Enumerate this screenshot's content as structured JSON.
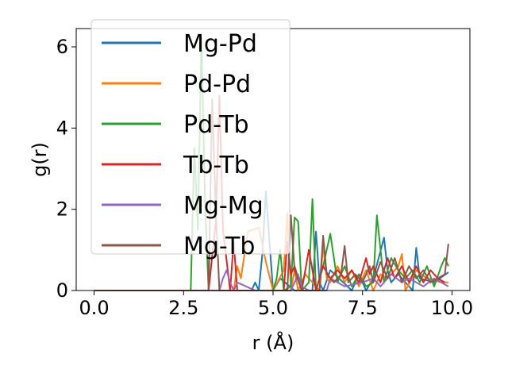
{
  "chart_data": {
    "type": "line",
    "xlabel": "r (Å)",
    "ylabel": "g(r)",
    "xlim": [
      -0.5,
      10.5
    ],
    "ylim": [
      0,
      6.45
    ],
    "xticks": [
      "0.0",
      "2.5",
      "5.0",
      "7.5",
      "10.0"
    ],
    "yticks": [
      "0",
      "2",
      "4",
      "6"
    ],
    "legend_position": "upper-left",
    "grid": false,
    "series": [
      {
        "name": "Mg-Pd",
        "color": "#1f77b4",
        "x": [
          0,
          0.5,
          1,
          1.5,
          2,
          2.5,
          2.7,
          2.8,
          2.9,
          3.0,
          3.5,
          4.0,
          4.4,
          4.5,
          4.6,
          4.7,
          4.8,
          4.9,
          5.0,
          5.2,
          5.6,
          6.1,
          6.2,
          6.3,
          6.4,
          6.6,
          7.2,
          7.4,
          7.6,
          7.8,
          8.1,
          8.2,
          8.3,
          8.5,
          8.9,
          9.0,
          9.1,
          9.5,
          9.9
        ],
        "y": [
          0,
          0,
          0,
          0,
          0,
          0,
          0,
          0,
          0,
          0,
          0,
          0,
          0,
          0.2,
          0,
          0.9,
          2.45,
          1.2,
          0,
          0.3,
          0,
          0,
          1.45,
          0.2,
          0,
          0.5,
          0,
          0.4,
          0,
          0.3,
          1.3,
          0.5,
          0.2,
          0.4,
          0,
          1.05,
          0.3,
          0.2,
          0.45
        ]
      },
      {
        "name": "Pd-Pd",
        "color": "#ff7f0e",
        "x": [
          0,
          0.5,
          1,
          1.5,
          2,
          2.5,
          3.5,
          3.9,
          4.0,
          4.1,
          4.3,
          4.6,
          4.8,
          5.0,
          5.3,
          5.4,
          5.5,
          5.6,
          5.7,
          5.9,
          6.3,
          6.4,
          6.5,
          6.6,
          6.8,
          7.0,
          7.2,
          7.4,
          7.6,
          7.8,
          8.0,
          8.2,
          8.5,
          8.6,
          8.7,
          9.0,
          9.3,
          9.7,
          9.9
        ],
        "y": [
          0,
          0,
          0,
          0,
          0,
          0,
          0,
          0,
          0.6,
          0.3,
          1.45,
          1.55,
          0.7,
          0,
          0.5,
          1.9,
          0,
          0.5,
          0,
          0.4,
          0,
          1.1,
          0.3,
          0.2,
          0.6,
          0.2,
          0.5,
          0.1,
          0.5,
          0,
          0.4,
          0.3,
          0.6,
          0.9,
          0,
          0.5,
          0.3,
          0.2,
          0.2
        ]
      },
      {
        "name": "Pd-Tb",
        "color": "#2ca02c",
        "x": [
          0,
          0.5,
          1,
          1.5,
          2,
          2.5,
          2.7,
          2.8,
          2.9,
          3.0,
          3.1,
          3.2,
          3.5,
          4.0,
          4.5,
          5.0,
          5.1,
          5.2,
          5.3,
          5.5,
          5.6,
          5.7,
          5.8,
          6.0,
          6.1,
          6.2,
          6.4,
          6.6,
          6.8,
          7.0,
          7.2,
          7.4,
          7.6,
          7.8,
          7.9,
          8.1,
          8.3,
          8.5,
          8.7,
          8.9,
          9.1,
          9.3,
          9.5,
          9.7,
          9.8,
          9.9
        ],
        "y": [
          0,
          0,
          0,
          0,
          0,
          0,
          0,
          3.5,
          1.5,
          6.2,
          2.2,
          0,
          0,
          0,
          0,
          0,
          0.3,
          1.0,
          0,
          0.1,
          1.8,
          1.7,
          0,
          0.2,
          2.25,
          0,
          0.6,
          1.4,
          0.2,
          0.6,
          0.1,
          0.4,
          0.1,
          0.2,
          1.85,
          0.2,
          0.8,
          0.5,
          0.3,
          0.5,
          0.2,
          0.6,
          0.1,
          0.6,
          0.8,
          0.6
        ]
      },
      {
        "name": "Tb-Tb",
        "color": "#d62728",
        "x": [
          0,
          0.5,
          1,
          1.5,
          2,
          2.5,
          3.0,
          3.2,
          3.4,
          3.5,
          3.6,
          3.8,
          3.9,
          4.0,
          4.5,
          5.0,
          5.3,
          5.4,
          5.5,
          5.6,
          5.8,
          6.0,
          6.2,
          6.4,
          6.6,
          6.8,
          7.0,
          7.2,
          7.4,
          7.6,
          7.7,
          7.8,
          8.0,
          8.2,
          8.4,
          8.6,
          8.8,
          9.0,
          9.2,
          9.4,
          9.6,
          9.8
        ],
        "y": [
          0,
          0,
          0,
          0,
          0,
          0,
          0,
          0,
          1.7,
          4.8,
          1.5,
          0,
          1.2,
          0,
          0,
          0,
          0,
          1.2,
          0.4,
          0.6,
          0,
          1.0,
          0,
          0.6,
          0.3,
          0.5,
          0.3,
          0.5,
          0.2,
          0.8,
          0.4,
          0.6,
          0.2,
          0.8,
          0.3,
          0.6,
          0.2,
          0.6,
          0.2,
          0.5,
          0.3,
          0.2
        ]
      },
      {
        "name": "Mg-Mg",
        "color": "#9467bd",
        "x": [
          0,
          0.5,
          1,
          1.5,
          2,
          2.5,
          3.0,
          3.5,
          3.6,
          3.7,
          3.8,
          3.9,
          4.0,
          4.5,
          5.0,
          5.5,
          5.6,
          5.7,
          5.8,
          6.0,
          6.5,
          6.6,
          6.8,
          7.0,
          7.5,
          7.8,
          8.0,
          8.3,
          8.6,
          8.8,
          9.0,
          9.2,
          9.5,
          9.7,
          9.9
        ],
        "y": [
          0,
          0,
          0,
          0,
          0,
          0,
          0,
          0,
          0.3,
          0.5,
          0.2,
          0,
          0.2,
          0,
          0,
          0,
          0.2,
          0.4,
          0.1,
          0,
          0,
          0.3,
          0.2,
          0.1,
          0.2,
          0.3,
          0.1,
          0.4,
          0.2,
          0.3,
          0.2,
          0.1,
          0.3,
          0.2,
          0.1
        ]
      },
      {
        "name": "Mg-Tb",
        "color": "#8c564b",
        "x": [
          0,
          0.5,
          1,
          1.5,
          2,
          2.5,
          3.0,
          3.2,
          3.3,
          3.4,
          3.5,
          3.6,
          4.0,
          4.5,
          5.0,
          5.4,
          5.5,
          5.6,
          5.8,
          6.0,
          6.3,
          6.4,
          6.5,
          6.7,
          6.9,
          7.0,
          7.1,
          7.3,
          7.5,
          7.7,
          7.8,
          8.0,
          8.2,
          8.4,
          8.6,
          8.8,
          9.0,
          9.2,
          9.4,
          9.6,
          9.8,
          9.9
        ],
        "y": [
          0,
          0,
          0,
          0,
          0,
          0,
          0,
          0,
          4.7,
          2.0,
          0,
          0,
          0,
          0,
          0,
          0,
          1.85,
          0.5,
          0,
          0,
          0,
          1.35,
          0.4,
          0.2,
          0.4,
          1.1,
          0.2,
          0.4,
          0.2,
          0.6,
          0.2,
          0.7,
          0.3,
          0.8,
          0.2,
          0.6,
          0.3,
          0.5,
          0.2,
          0.3,
          0.4,
          1.15
        ]
      }
    ]
  }
}
